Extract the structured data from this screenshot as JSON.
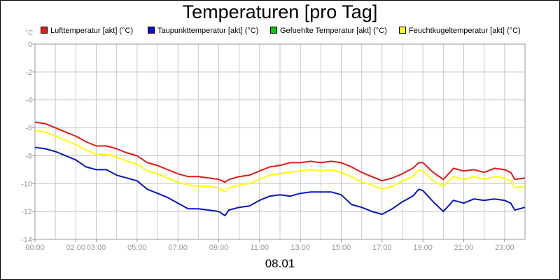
{
  "chart_data": {
    "type": "line",
    "title": "Temperaturen [pro Tag]",
    "unit_label": "°C",
    "x_label": "08.01",
    "x_range": [
      "00:00",
      "24:00"
    ],
    "x_ticks": [
      "00:00",
      "02:00",
      "03:00",
      "05:00",
      "07:00",
      "09:00",
      "11:00",
      "13:00",
      "15:00",
      "17:00",
      "19:00",
      "21:00",
      "23:00"
    ],
    "y_range": [
      -14,
      0
    ],
    "y_ticks": [
      "0",
      "-2",
      "-4",
      "-6",
      "-8",
      "-10",
      "-12",
      "-14"
    ],
    "grid": true,
    "legend_placement": "top",
    "series": [
      {
        "name": "Lufttemperatur [akt] (°C)",
        "color": "#e31a1c",
        "x": [
          0,
          0.5,
          1,
          1.5,
          2,
          2.5,
          3,
          3.5,
          4,
          4.5,
          5,
          5.5,
          6,
          6.5,
          7,
          7.5,
          8,
          8.5,
          9,
          9.3,
          9.5,
          10,
          10.5,
          11,
          11.5,
          12,
          12.5,
          13,
          13.5,
          14,
          14.5,
          15,
          15.5,
          16,
          16.5,
          17,
          17.5,
          18,
          18.5,
          18.8,
          19,
          19.5,
          20,
          20.5,
          21,
          21.5,
          22,
          22.5,
          23,
          23.3,
          23.5,
          24
        ],
        "y": [
          -5.6,
          -5.7,
          -6.0,
          -6.3,
          -6.6,
          -7.0,
          -7.3,
          -7.3,
          -7.5,
          -7.8,
          -8.0,
          -8.5,
          -8.7,
          -9.0,
          -9.3,
          -9.5,
          -9.5,
          -9.6,
          -9.7,
          -9.9,
          -9.7,
          -9.5,
          -9.4,
          -9.1,
          -8.8,
          -8.7,
          -8.5,
          -8.5,
          -8.4,
          -8.5,
          -8.4,
          -8.5,
          -8.8,
          -9.2,
          -9.5,
          -9.8,
          -9.6,
          -9.3,
          -8.9,
          -8.5,
          -8.5,
          -9.2,
          -9.7,
          -8.9,
          -9.1,
          -9.0,
          -9.2,
          -8.9,
          -9.0,
          -9.2,
          -9.7,
          -9.6
        ]
      },
      {
        "name": "Taupunkttemperatur [akt] (°C)",
        "color": "#0a14c8",
        "x": [
          0,
          0.5,
          1,
          1.5,
          2,
          2.5,
          3,
          3.5,
          4,
          4.5,
          5,
          5.5,
          6,
          6.5,
          7,
          7.5,
          8,
          8.5,
          9,
          9.3,
          9.5,
          10,
          10.5,
          11,
          11.5,
          12,
          12.5,
          13,
          13.5,
          14,
          14.5,
          15,
          15.5,
          16,
          16.5,
          17,
          17.5,
          18,
          18.5,
          18.8,
          19,
          19.5,
          20,
          20.5,
          21,
          21.5,
          22,
          22.5,
          23,
          23.3,
          23.5,
          24
        ],
        "y": [
          -7.4,
          -7.5,
          -7.7,
          -8.0,
          -8.3,
          -8.8,
          -9.0,
          -9.0,
          -9.4,
          -9.6,
          -9.8,
          -10.4,
          -10.7,
          -11.0,
          -11.4,
          -11.8,
          -11.8,
          -11.9,
          -12.0,
          -12.3,
          -11.9,
          -11.7,
          -11.6,
          -11.2,
          -10.9,
          -10.8,
          -10.9,
          -10.7,
          -10.6,
          -10.6,
          -10.6,
          -10.8,
          -11.5,
          -11.7,
          -12.0,
          -12.2,
          -11.8,
          -11.3,
          -10.9,
          -10.4,
          -10.5,
          -11.3,
          -12.0,
          -11.2,
          -11.4,
          -11.1,
          -11.2,
          -11.1,
          -11.2,
          -11.4,
          -11.9,
          -11.7
        ]
      },
      {
        "name": "Gefuehlte Temperatur [akt] (°C)",
        "color": "#00cc00",
        "x": [],
        "y": []
      },
      {
        "name": "Feuchtkugeltemperatur [akt] (°C)",
        "color": "#ffff00",
        "x": [
          0,
          0.5,
          1,
          1.5,
          2,
          2.5,
          3,
          3.5,
          4,
          4.5,
          5,
          5.5,
          6,
          6.5,
          7,
          7.5,
          8,
          8.5,
          9,
          9.3,
          9.5,
          10,
          10.5,
          11,
          11.5,
          12,
          12.5,
          13,
          13.5,
          14,
          14.5,
          15,
          15.5,
          16,
          16.5,
          17,
          17.5,
          18,
          18.5,
          18.8,
          19,
          19.5,
          20,
          20.5,
          21,
          21.5,
          22,
          22.5,
          23,
          23.3,
          23.5,
          24
        ],
        "y": [
          -6.2,
          -6.3,
          -6.6,
          -6.9,
          -7.2,
          -7.6,
          -7.9,
          -7.9,
          -8.1,
          -8.4,
          -8.6,
          -9.1,
          -9.3,
          -9.6,
          -9.9,
          -10.1,
          -10.2,
          -10.2,
          -10.3,
          -10.6,
          -10.3,
          -10.1,
          -10.0,
          -9.7,
          -9.4,
          -9.3,
          -9.2,
          -9.1,
          -9.0,
          -9.1,
          -9.0,
          -9.2,
          -9.5,
          -9.9,
          -10.1,
          -10.4,
          -10.2,
          -9.8,
          -9.5,
          -9.0,
          -9.1,
          -9.8,
          -10.2,
          -9.5,
          -9.7,
          -9.5,
          -9.7,
          -9.5,
          -9.6,
          -9.8,
          -10.3,
          -10.2
        ]
      }
    ]
  }
}
